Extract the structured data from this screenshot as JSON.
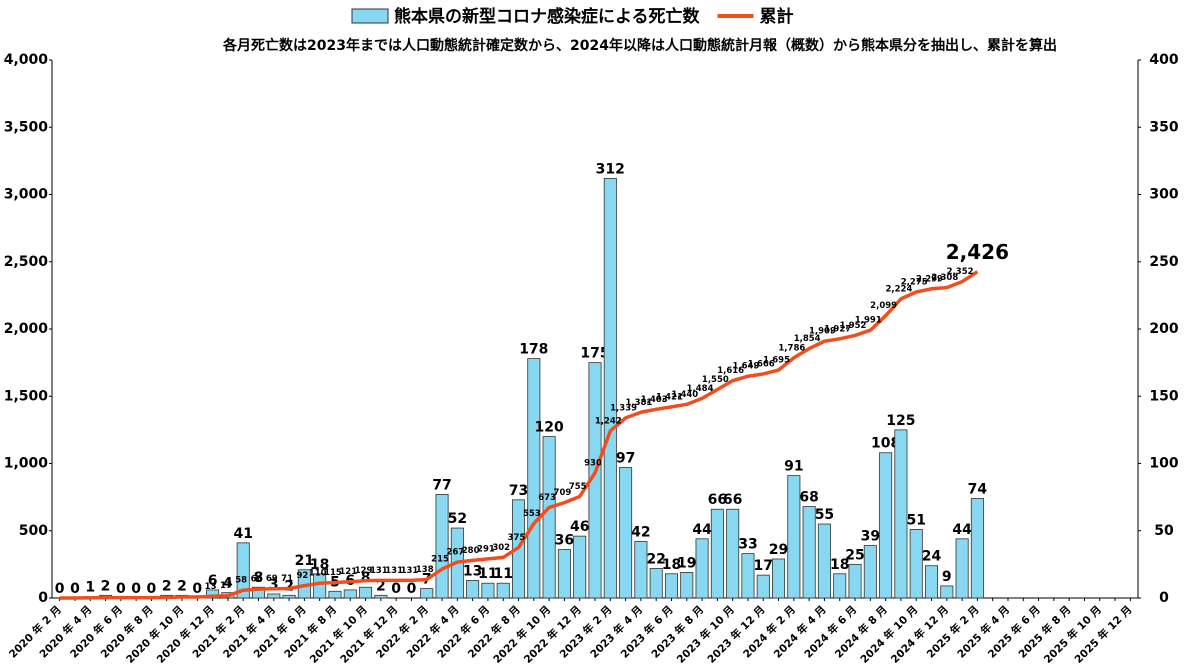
{
  "chart_data": {
    "type": "combo",
    "subtitle": "各月死亡数は2023年までは人口動態統計確定数から、2024年以降は人口動態統計月報（概数）から熊本県分を抽出し、累計を算出",
    "categories": [
      "2020 年 2 月",
      null,
      "2020 年 4 月",
      null,
      "2020 年 6 月",
      null,
      "2020 年 8 月",
      null,
      "2020 年 10 月",
      null,
      "2020 年 12 月",
      null,
      "2021 年 2 月",
      null,
      "2021 年 4 月",
      null,
      "2021 年 6 月",
      null,
      "2021 年 8 月",
      null,
      "2021 年 10 月",
      null,
      "2021 年 12 月",
      null,
      "2022 年 2 月",
      null,
      "2022 年 4 月",
      null,
      "2022 年 6 月",
      null,
      "2022 年 8 月",
      null,
      "2022 年 10 月",
      null,
      "2022 年 12 月",
      null,
      "2023 年 2 月",
      null,
      "2023 年 4 月",
      null,
      "2023 年 6 月",
      null,
      "2023 年 8 月",
      null,
      "2023 年 10 月",
      null,
      "2023 年 12 月",
      null,
      "2024 年 2 月",
      null,
      "2024 年 4 月",
      null,
      "2024 年 6 月",
      null,
      "2024 年 8 月",
      null,
      "2024 年 10 月",
      null,
      "2024 年 12 月",
      null,
      "2025 年 2 月",
      null,
      "2025 年 4 月",
      null,
      "2025 年 6 月",
      null,
      "2025 年 8 月",
      null,
      "2025 年 10 月",
      null,
      "2025 年 12 月"
    ],
    "series": [
      {
        "name": "熊本県の新型コロナ感染症による死亡数",
        "type": "bar",
        "axis": "y2",
        "color": "#87d8f0",
        "values": [
          0,
          0,
          1,
          2,
          0,
          0,
          0,
          2,
          2,
          0,
          6,
          4,
          41,
          8,
          3,
          2,
          21,
          18,
          5,
          6,
          8,
          2,
          0,
          0,
          7,
          77,
          52,
          13,
          11,
          11,
          73,
          178,
          120,
          36,
          46,
          175,
          312,
          97,
          42,
          22,
          18,
          19,
          44,
          66,
          66,
          33,
          17,
          29,
          91,
          68,
          55,
          18,
          25,
          39,
          108,
          125,
          51,
          24,
          9,
          44,
          74,
          null,
          null,
          null,
          null,
          null,
          null,
          null,
          null,
          null,
          null
        ]
      },
      {
        "name": "累計",
        "type": "line",
        "axis": "y",
        "color": "#f04e1e",
        "values": [
          0,
          0,
          1,
          3,
          3,
          3,
          3,
          5,
          7,
          7,
          13,
          17,
          58,
          66,
          69,
          71,
          92,
          110,
          115,
          121,
          129,
          131,
          131,
          131,
          138,
          215,
          267,
          280,
          291,
          302,
          375,
          553,
          673,
          709,
          755,
          930,
          1242,
          1339,
          1381,
          1403,
          1421,
          1440,
          1484,
          1550,
          1616,
          1649,
          1666,
          1695,
          1786,
          1854,
          1909,
          1927,
          1952,
          1991,
          2099,
          2224,
          2275,
          2299,
          2308,
          2352,
          2426,
          null,
          null,
          null,
          null,
          null,
          null,
          null,
          null,
          null,
          null
        ],
        "value_labels": [
          null,
          null,
          null,
          null,
          null,
          null,
          null,
          null,
          null,
          null,
          "13",
          "17",
          "58",
          "66",
          "69",
          "71",
          "92",
          "110",
          "115",
          "121",
          "129",
          "131",
          "131",
          "131",
          "138",
          "215",
          "267",
          "280",
          "291",
          "302",
          "375",
          "553",
          "673",
          "709",
          "755",
          "930",
          "1,242",
          "1,339",
          "1,381",
          "1,403",
          "1,421",
          "1,440",
          "1,484",
          "1,550",
          "1,616",
          "1,649",
          "1,666",
          "1,695",
          "1,786",
          "1,854",
          "1,909",
          "1,927",
          "1,952",
          "1,991",
          "2,099",
          "2,224",
          "2,275",
          "2,299",
          "2,308",
          "2,352",
          "2,426",
          null,
          null,
          null,
          null,
          null,
          null,
          null,
          null,
          null,
          null
        ]
      }
    ],
    "ylim": [
      0,
      4000
    ],
    "yticks": [
      0,
      500,
      {
        "value": 1000,
        "label": "1,000"
      },
      {
        "value": 1500,
        "label": "1,500"
      },
      {
        "value": 2000,
        "label": "2,000"
      },
      {
        "value": 2500,
        "label": "2,500"
      },
      {
        "value": 3000,
        "label": "3,000"
      },
      {
        "value": 3500,
        "label": "3,500"
      },
      {
        "value": 4000,
        "label": "4,000"
      }
    ],
    "y2lim": [
      0,
      400
    ],
    "y2ticks": [
      0,
      50,
      100,
      150,
      200,
      250,
      300,
      350,
      400
    ],
    "grid": false,
    "legend": "top"
  }
}
